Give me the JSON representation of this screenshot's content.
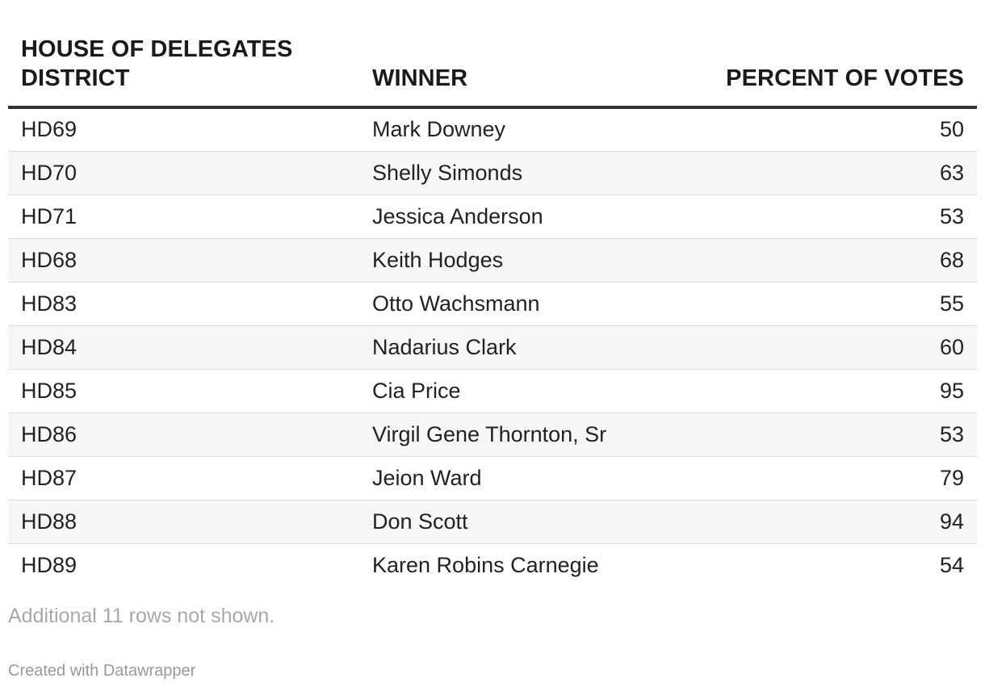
{
  "chart_data": {
    "type": "table",
    "columns": [
      "HOUSE OF DELEGATES DISTRICT",
      "WINNER",
      "PERCENT OF VOTES"
    ],
    "rows": [
      {
        "district": "HD69",
        "winner": "Mark Downey",
        "percent": 50
      },
      {
        "district": "HD70",
        "winner": "Shelly Simonds",
        "percent": 63
      },
      {
        "district": "HD71",
        "winner": "Jessica Anderson",
        "percent": 53
      },
      {
        "district": "HD68",
        "winner": "Keith Hodges",
        "percent": 68
      },
      {
        "district": "HD83",
        "winner": "Otto Wachsmann",
        "percent": 55
      },
      {
        "district": "HD84",
        "winner": "Nadarius Clark",
        "percent": 60
      },
      {
        "district": "HD85",
        "winner": "Cia Price",
        "percent": 95
      },
      {
        "district": "HD86",
        "winner": "Virgil Gene Thornton, Sr",
        "percent": 53
      },
      {
        "district": "HD87",
        "winner": "Jeion Ward",
        "percent": 79
      },
      {
        "district": "HD88",
        "winner": "Don Scott",
        "percent": 94
      },
      {
        "district": "HD89",
        "winner": "Karen Robins Carnegie",
        "percent": 54
      }
    ]
  },
  "footer": {
    "note": "Additional 11 rows not shown.",
    "credit": "Created with Datawrapper"
  }
}
